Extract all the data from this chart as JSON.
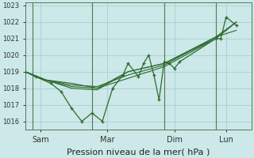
{
  "xlabel": "Pression niveau de la mer( hPa )",
  "background_color": "#cce8e8",
  "grid_color": "#aad4d4",
  "line_color": "#2d6a2d",
  "vline_color": "#557755",
  "ylim": [
    1015.5,
    1023.2
  ],
  "yticks": [
    1016,
    1017,
    1018,
    1019,
    1020,
    1021,
    1022,
    1023
  ],
  "num_points": 22,
  "x_sam": 1.5,
  "x_mar": 8.0,
  "x_dim": 14.5,
  "x_lun": 19.5,
  "vline_positions": [
    0.7,
    6.5,
    13.5,
    18.5
  ],
  "xlim": [
    0,
    22
  ],
  "series_zigzag": [
    [
      0,
      1019.0
    ],
    [
      1,
      1018.7
    ],
    [
      2.5,
      1018.3
    ],
    [
      3.5,
      1017.8
    ],
    [
      4.5,
      1016.8
    ],
    [
      5.5,
      1016.0
    ],
    [
      6.5,
      1016.5
    ],
    [
      7.5,
      1016.0
    ],
    [
      8.5,
      1018.0
    ],
    [
      9.5,
      1018.8
    ],
    [
      10,
      1019.5
    ],
    [
      11,
      1018.7
    ],
    [
      11.5,
      1019.5
    ],
    [
      12,
      1020.0
    ],
    [
      12.5,
      1018.8
    ],
    [
      13,
      1017.3
    ],
    [
      13.5,
      1019.6
    ],
    [
      14,
      1019.5
    ],
    [
      14.5,
      1019.2
    ],
    [
      15,
      1019.6
    ],
    [
      18.5,
      1021.0
    ],
    [
      19,
      1021.0
    ],
    [
      19.5,
      1022.3
    ],
    [
      20.5,
      1021.8
    ]
  ],
  "series_smooth": [
    [
      [
        0,
        1019.0
      ],
      [
        2,
        1018.5
      ],
      [
        4.5,
        1018.3
      ],
      [
        7,
        1018.0
      ],
      [
        10,
        1018.6
      ],
      [
        13.5,
        1019.3
      ],
      [
        18.5,
        1021.0
      ],
      [
        20.5,
        1022.0
      ]
    ],
    [
      [
        0,
        1019.0
      ],
      [
        2,
        1018.5
      ],
      [
        4.5,
        1018.2
      ],
      [
        7,
        1018.1
      ],
      [
        10,
        1018.8
      ],
      [
        13.5,
        1019.4
      ],
      [
        18.5,
        1021.1
      ],
      [
        20.5,
        1022.0
      ]
    ],
    [
      [
        0,
        1019.0
      ],
      [
        2,
        1018.5
      ],
      [
        4.5,
        1018.1
      ],
      [
        7,
        1018.0
      ],
      [
        10,
        1019.0
      ],
      [
        13.5,
        1019.5
      ],
      [
        18.5,
        1021.1
      ],
      [
        20.5,
        1021.5
      ]
    ],
    [
      [
        0,
        1019.0
      ],
      [
        2,
        1018.5
      ],
      [
        4.5,
        1018.0
      ],
      [
        7,
        1017.9
      ],
      [
        10,
        1019.0
      ],
      [
        13.5,
        1019.5
      ],
      [
        18.5,
        1021.0
      ],
      [
        20.5,
        1022.0
      ]
    ]
  ],
  "xtick_labels": [
    "Sam",
    "Mar",
    "Dim",
    "Lun"
  ],
  "xlabel_fontsize": 8,
  "ytick_fontsize": 6,
  "xtick_fontsize": 7
}
